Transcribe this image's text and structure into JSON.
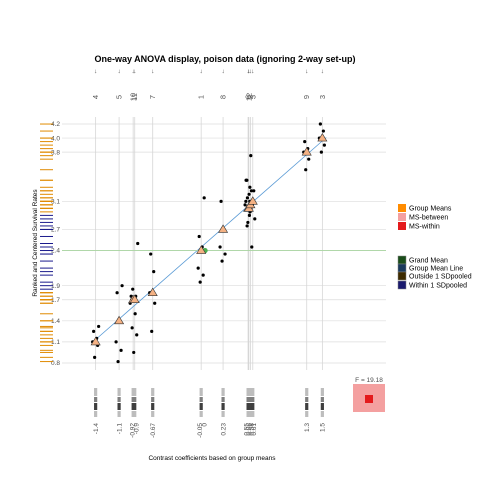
{
  "chart_data": {
    "type": "scatter",
    "title": "One-way ANOVA display, poison data (ignoring 2-way set-up)",
    "xlabel": "Contrast coefficients based on group means",
    "ylabel": "Ranked and Centered Survival Rates",
    "y_ticks": [
      0.8,
      1.1,
      1.4,
      1.7,
      1.9,
      2.4,
      2.7,
      3.1,
      3.8,
      4.0,
      4.2
    ],
    "x_tick_labels": [
      "-1.4",
      "-1.1",
      "-0.92",
      "-0.9",
      "-0.67",
      "-0.05",
      "0",
      "0.23",
      "0.55",
      "0.56",
      "0.58",
      "0.61",
      "1.3",
      "1.5"
    ],
    "groups": [
      {
        "label": "4",
        "contrast": -1.4,
        "mean": 1.1,
        "highlight": false,
        "points": [
          0.88,
          1.05,
          1.1,
          1.15,
          1.25,
          1.32
        ]
      },
      {
        "label": "5",
        "contrast": -1.1,
        "mean": 1.4,
        "highlight": false,
        "points": [
          0.82,
          0.98,
          1.1,
          1.4,
          1.8,
          1.9
        ]
      },
      {
        "label": "10",
        "contrast": -0.92,
        "mean": 1.7,
        "highlight": true,
        "points": [
          1.3,
          1.5,
          1.65,
          1.7,
          1.75
        ]
      },
      {
        "label": "11",
        "contrast": -0.9,
        "mean": 1.7,
        "highlight": true,
        "points": [
          0.95,
          1.2,
          1.7,
          1.75,
          1.85,
          2.5
        ]
      },
      {
        "label": "7",
        "contrast": -0.67,
        "mean": 1.8,
        "highlight": false,
        "points": [
          1.25,
          1.65,
          1.8,
          2.1,
          2.35
        ]
      },
      {
        "label": "1",
        "contrast": -0.05,
        "mean": 2.4,
        "highlight": false,
        "points": [
          1.95,
          2.05,
          2.15,
          2.45,
          2.6,
          3.15
        ]
      },
      {
        "label": "8",
        "contrast": 0.23,
        "mean": 2.7,
        "highlight": false,
        "points": [
          2.25,
          2.35,
          2.45,
          2.7,
          3.1
        ]
      },
      {
        "label": "6",
        "contrast": 0.55,
        "mean": 3.0,
        "highlight": false,
        "points": [
          2.75,
          2.95,
          3.05,
          3.2,
          3.4
        ]
      },
      {
        "label": "12",
        "contrast": 0.56,
        "mean": 3.0,
        "highlight": true,
        "points": [
          2.8,
          3.0,
          3.1,
          3.3,
          3.4
        ]
      },
      {
        "label": "2",
        "contrast": 0.58,
        "mean": 3.05,
        "highlight": true,
        "points": [
          2.9,
          3.05,
          3.15,
          3.25
        ]
      },
      {
        "label": "3",
        "contrast": 0.61,
        "mean": 3.1,
        "highlight": false,
        "points": [
          2.45,
          2.85,
          3.1,
          3.25,
          3.75
        ]
      },
      {
        "label": "9",
        "contrast": 1.3,
        "mean": 3.8,
        "highlight": false,
        "points": [
          3.55,
          3.7,
          3.8,
          3.85,
          3.95
        ]
      },
      {
        "label": "3",
        "contrast": 1.5,
        "mean": 4.0,
        "highlight": false,
        "points": [
          3.8,
          3.9,
          4.0,
          4.1,
          4.2
        ]
      }
    ],
    "grand_mean": {
      "x": 0,
      "y": 2.4
    },
    "f_stat": "F = 19.18",
    "legend": {
      "placement": "right",
      "items": [
        {
          "label": "Group Means",
          "color": "#ff8c00"
        },
        {
          "label": "MS-between",
          "color": "#f4a0a0"
        },
        {
          "label": "MS-within",
          "color": "#e41a1c"
        },
        {
          "label": "Grand Mean",
          "color": "#1a4d1a"
        },
        {
          "label": "Group Mean Line",
          "color": "#1a3a5c"
        },
        {
          "label": "Outside 1 SDpooled",
          "color": "#3d2b00"
        },
        {
          "label": "Within 1 SDpooled",
          "color": "#1a1a6e"
        }
      ]
    }
  }
}
